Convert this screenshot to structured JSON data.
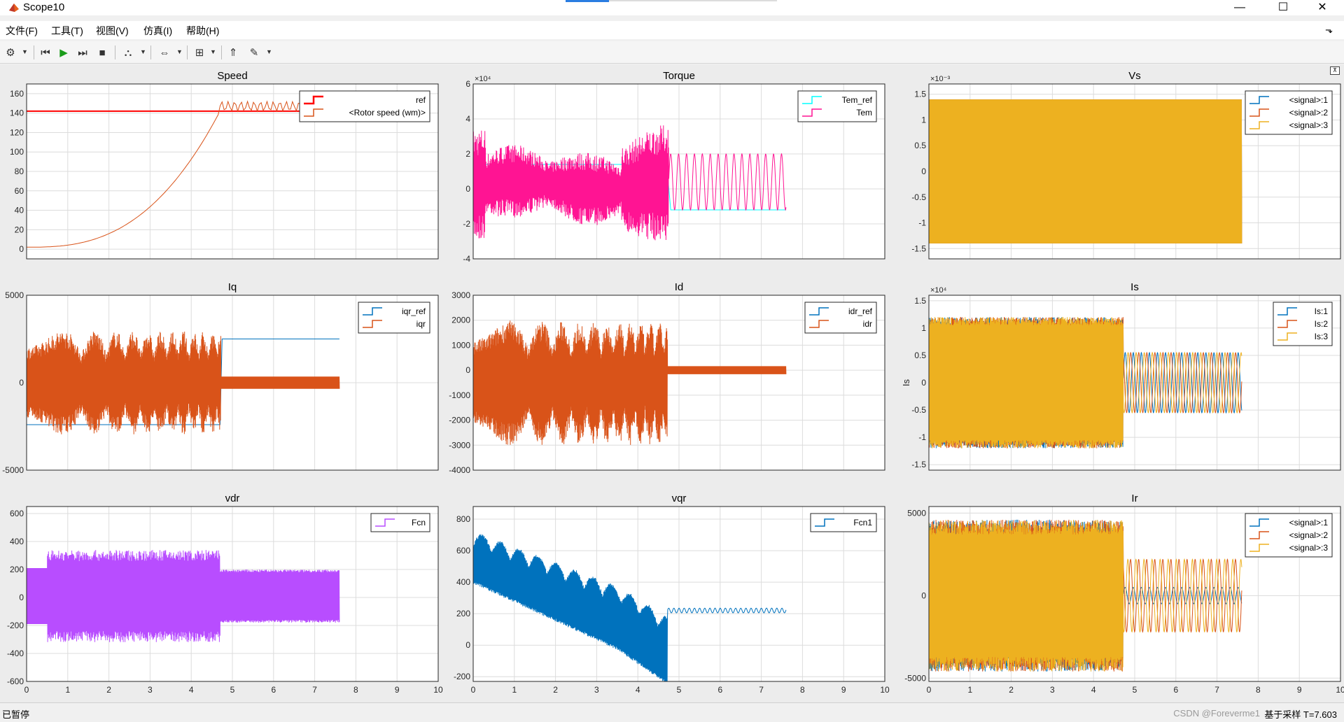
{
  "window": {
    "title": "Scope10",
    "minimize": "—",
    "maximize": "☐",
    "close": "✕"
  },
  "menu": [
    {
      "id": "file",
      "label": "文件(F)"
    },
    {
      "id": "tools",
      "label": "工具(T)"
    },
    {
      "id": "view",
      "label": "视图(V)"
    },
    {
      "id": "simulation",
      "label": "仿真(I)"
    },
    {
      "id": "help",
      "label": "帮助(H)"
    }
  ],
  "menu_pin": "⬎",
  "toolbar": [
    {
      "id": "settings",
      "icon": "gear-icon",
      "glyph": "⚙"
    },
    {
      "id": "step-back",
      "icon": "step-back-icon",
      "glyph": "⏮"
    },
    {
      "id": "run",
      "icon": "run-icon",
      "glyph": "▶"
    },
    {
      "id": "step-forward",
      "icon": "step-forward-icon",
      "glyph": "⏭"
    },
    {
      "id": "stop",
      "icon": "stop-icon",
      "glyph": "■"
    },
    {
      "id": "highlight",
      "icon": "highlight-icon",
      "glyph": "⛬"
    },
    {
      "id": "zoom",
      "icon": "zoom-icon",
      "glyph": "⇔"
    },
    {
      "id": "fit",
      "icon": "fit-icon",
      "glyph": "⊞"
    },
    {
      "id": "triggers",
      "icon": "trigger-icon",
      "glyph": "⇑"
    },
    {
      "id": "style",
      "icon": "style-icon",
      "glyph": "✎"
    }
  ],
  "colors": {
    "blue": "#0072bd",
    "orange": "#d95319",
    "yellow": "#edb120",
    "red": "#ff0000",
    "cyan": "#00ffff",
    "magenta": "#ff1493",
    "purple": "#b84dff"
  },
  "chart_data": [
    {
      "title": "Speed",
      "type": "line",
      "xlim": [
        0,
        10
      ],
      "ylim": [
        -10,
        170
      ],
      "yticks": [
        "160",
        "140",
        "120",
        "100",
        "80",
        "60",
        "40",
        "20",
        "0"
      ],
      "ytick_values": [
        160,
        140,
        120,
        100,
        80,
        60,
        40,
        20,
        0
      ],
      "grid": true,
      "legend": "top-right",
      "series": [
        {
          "name": "ref",
          "color": "#ff0000",
          "pattern": "const",
          "points": [
            [
              0,
              142
            ],
            [
              7.6,
              142
            ]
          ]
        },
        {
          "name": "<Rotor speed (wm)>",
          "color": "#d95319",
          "pattern": "speed",
          "points": [
            [
              0,
              2
            ],
            [
              1,
              6
            ],
            [
              2,
              20
            ],
            [
              3,
              40
            ],
            [
              4,
              70
            ],
            [
              4.7,
              145
            ],
            [
              7.6,
              147
            ]
          ]
        }
      ]
    },
    {
      "title": "Torque",
      "type": "line",
      "xlim": [
        0,
        10
      ],
      "ylim": [
        -4,
        6
      ],
      "exponent": "×10⁴",
      "yticks": [
        "6",
        "4",
        "2",
        "0",
        "-2",
        "-4"
      ],
      "ytick_values": [
        6,
        4,
        2,
        0,
        -2,
        -4
      ],
      "grid": true,
      "legend": "top-right",
      "series": [
        {
          "name": "Tem_ref",
          "color": "#00ffff",
          "pattern": "step",
          "points": [
            [
              0,
              1.4
            ],
            [
              4.7,
              1.4
            ],
            [
              4.8,
              -1.2
            ],
            [
              7.6,
              -1.2
            ]
          ]
        },
        {
          "name": "Tem",
          "color": "#ff1493",
          "pattern": "torque",
          "points": [
            [
              0,
              4
            ],
            [
              0.2,
              -3
            ],
            [
              1,
              1
            ],
            [
              2,
              -1
            ],
            [
              3,
              2
            ],
            [
              4,
              -2
            ],
            [
              4.7,
              4.2
            ],
            [
              4.8,
              2
            ],
            [
              7.6,
              -1.2
            ]
          ]
        }
      ]
    },
    {
      "title": "Vs",
      "type": "line",
      "xlim": [
        0,
        10
      ],
      "ylim": [
        -1.7,
        1.7
      ],
      "exponent": "×10⁻³",
      "yticks": [
        "1.5",
        "1",
        "0.5",
        "0",
        "-0.5",
        "-1",
        "-1.5"
      ],
      "ytick_values": [
        1.5,
        1,
        0.5,
        0,
        -0.5,
        -1,
        -1.5
      ],
      "grid": true,
      "legend": "top-right",
      "series": [
        {
          "name": "<signal>:1",
          "color": "#0072bd",
          "pattern": "band",
          "points": [
            [
              0,
              1.4
            ],
            [
              7.6,
              1.4
            ],
            [
              7.6,
              -1.4
            ],
            [
              0,
              -1.4
            ]
          ]
        },
        {
          "name": "<signal>:2",
          "color": "#d95319",
          "pattern": "band",
          "points": [
            [
              0,
              1.4
            ],
            [
              7.6,
              1.4
            ],
            [
              7.6,
              -1.4
            ],
            [
              0,
              -1.4
            ]
          ]
        },
        {
          "name": "<signal>:3",
          "color": "#edb120",
          "pattern": "band",
          "points": [
            [
              0,
              1.4
            ],
            [
              7.6,
              1.4
            ],
            [
              7.6,
              -1.4
            ],
            [
              0,
              -1.4
            ]
          ]
        }
      ]
    },
    {
      "title": "Iq",
      "type": "line",
      "xlim": [
        0,
        10
      ],
      "ylim": [
        -5000,
        5000
      ],
      "yticks": [
        "5000",
        "0",
        "-5000"
      ],
      "ytick_values": [
        5000,
        0,
        -5000
      ],
      "grid": true,
      "legend": "top-right",
      "series": [
        {
          "name": "iqr_ref",
          "color": "#0072bd",
          "pattern": "step",
          "points": [
            [
              0,
              -2400
            ],
            [
              4.7,
              -2400
            ],
            [
              4.75,
              2500
            ],
            [
              7.6,
              2500
            ]
          ]
        },
        {
          "name": "iqr",
          "color": "#d95319",
          "pattern": "iq",
          "points": [
            [
              0,
              4500
            ],
            [
              0.5,
              -3000
            ],
            [
              2,
              2000
            ],
            [
              3.5,
              3500
            ],
            [
              4.7,
              -3000
            ],
            [
              4.8,
              0
            ],
            [
              7.6,
              0
            ]
          ]
        }
      ]
    },
    {
      "title": "Id",
      "type": "line",
      "xlim": [
        0,
        10
      ],
      "ylim": [
        -4000,
        3000
      ],
      "yticks": [
        "3000",
        "2000",
        "1000",
        "0",
        "-1000",
        "-2000",
        "-3000",
        "-4000"
      ],
      "ytick_values": [
        3000,
        2000,
        1000,
        0,
        -1000,
        -2000,
        -3000,
        -4000
      ],
      "grid": true,
      "legend": "top-right",
      "series": [
        {
          "name": "idr_ref",
          "color": "#0072bd",
          "pattern": "const",
          "points": [
            [
              0,
              0
            ],
            [
              7.6,
              0
            ]
          ]
        },
        {
          "name": "idr",
          "color": "#d95319",
          "pattern": "id",
          "points": [
            [
              0,
              1800
            ],
            [
              0.5,
              -3500
            ],
            [
              2,
              1500
            ],
            [
              4.7,
              2200
            ],
            [
              4.8,
              0
            ],
            [
              7.6,
              0
            ]
          ]
        }
      ]
    },
    {
      "title": "Is",
      "type": "line",
      "xlim": [
        0,
        10
      ],
      "ylim": [
        -1.6,
        1.6
      ],
      "exponent": "×10⁴",
      "ylabel": "Is",
      "yticks": [
        "1.5",
        "1",
        "0.5",
        "0",
        "-0.5",
        "-1",
        "-1.5"
      ],
      "ytick_values": [
        1.5,
        1,
        0.5,
        0,
        -0.5,
        -1,
        -1.5
      ],
      "grid": true,
      "legend": "top-right",
      "series": [
        {
          "name": "Is:1",
          "color": "#0072bd",
          "pattern": "is",
          "points": [
            [
              0,
              1
            ],
            [
              4.7,
              1.2
            ],
            [
              4.8,
              0.5
            ],
            [
              7.6,
              -0.5
            ]
          ]
        },
        {
          "name": "Is:2",
          "color": "#d95319",
          "pattern": "is",
          "points": [
            [
              0,
              1
            ],
            [
              4.7,
              1.3
            ],
            [
              4.8,
              0.5
            ],
            [
              7.6,
              -0.5
            ]
          ]
        },
        {
          "name": "Is:3",
          "color": "#edb120",
          "pattern": "is",
          "points": [
            [
              0,
              1
            ],
            [
              4.7,
              1.2
            ],
            [
              4.8,
              0.5
            ],
            [
              7.6,
              -0.5
            ]
          ]
        }
      ]
    },
    {
      "title": "vdr",
      "type": "line",
      "xlim": [
        0,
        10
      ],
      "ylim": [
        -600,
        650
      ],
      "yticks": [
        "600",
        "400",
        "200",
        "0",
        "-200",
        "-400",
        "-600"
      ],
      "ytick_values": [
        600,
        400,
        200,
        0,
        -200,
        -400,
        -600
      ],
      "grid": true,
      "legend": "top-right",
      "series": [
        {
          "name": "Fcn",
          "color": "#b84dff",
          "pattern": "vdr",
          "points": [
            [
              0,
              180
            ],
            [
              0.6,
              350
            ],
            [
              4.7,
              250
            ],
            [
              7.6,
              150
            ]
          ]
        }
      ]
    },
    {
      "title": "vqr",
      "type": "line",
      "xlim": [
        0,
        10
      ],
      "ylim": [
        -230,
        880
      ],
      "yticks": [
        "800",
        "600",
        "400",
        "200",
        "0",
        "-200"
      ],
      "ytick_values": [
        800,
        600,
        400,
        200,
        0,
        -200
      ],
      "grid": true,
      "legend": "top-right",
      "series": [
        {
          "name": "Fcn1",
          "color": "#0072bd",
          "pattern": "vqr",
          "points": [
            [
              0,
              750
            ],
            [
              0.3,
              380
            ],
            [
              4.7,
              -150
            ],
            [
              4.8,
              220
            ],
            [
              7.6,
              220
            ]
          ]
        }
      ]
    },
    {
      "title": "Ir",
      "type": "line",
      "xlim": [
        0,
        10
      ],
      "ylim": [
        -5200,
        5400
      ],
      "yticks": [
        "5000",
        "0",
        "-5000"
      ],
      "ytick_values": [
        5000,
        0,
        -5000
      ],
      "grid": true,
      "legend": "top-right",
      "series": [
        {
          "name": "<signal>:1",
          "color": "#0072bd",
          "pattern": "ir",
          "points": [
            [
              0,
              4000
            ],
            [
              4.7,
              5000
            ],
            [
              4.8,
              2000
            ],
            [
              7.6,
              -2000
            ]
          ]
        },
        {
          "name": "<signal>:2",
          "color": "#d95319",
          "pattern": "ir",
          "points": [
            [
              0,
              4000
            ],
            [
              4.7,
              5000
            ],
            [
              4.8,
              2000
            ],
            [
              7.6,
              -2000
            ]
          ]
        },
        {
          "name": "<signal>:3",
          "color": "#edb120",
          "pattern": "ir",
          "points": [
            [
              0,
              4000
            ],
            [
              4.7,
              5000
            ],
            [
              4.8,
              2000
            ],
            [
              7.6,
              -2000
            ]
          ]
        }
      ]
    }
  ],
  "xticks": [
    "0",
    "1",
    "2",
    "3",
    "4",
    "5",
    "6",
    "7",
    "8",
    "9",
    "10"
  ],
  "status": {
    "left": "已暂停",
    "right": "基于采样 T=7.603",
    "watermark": "CSDN @Foreverme1"
  }
}
